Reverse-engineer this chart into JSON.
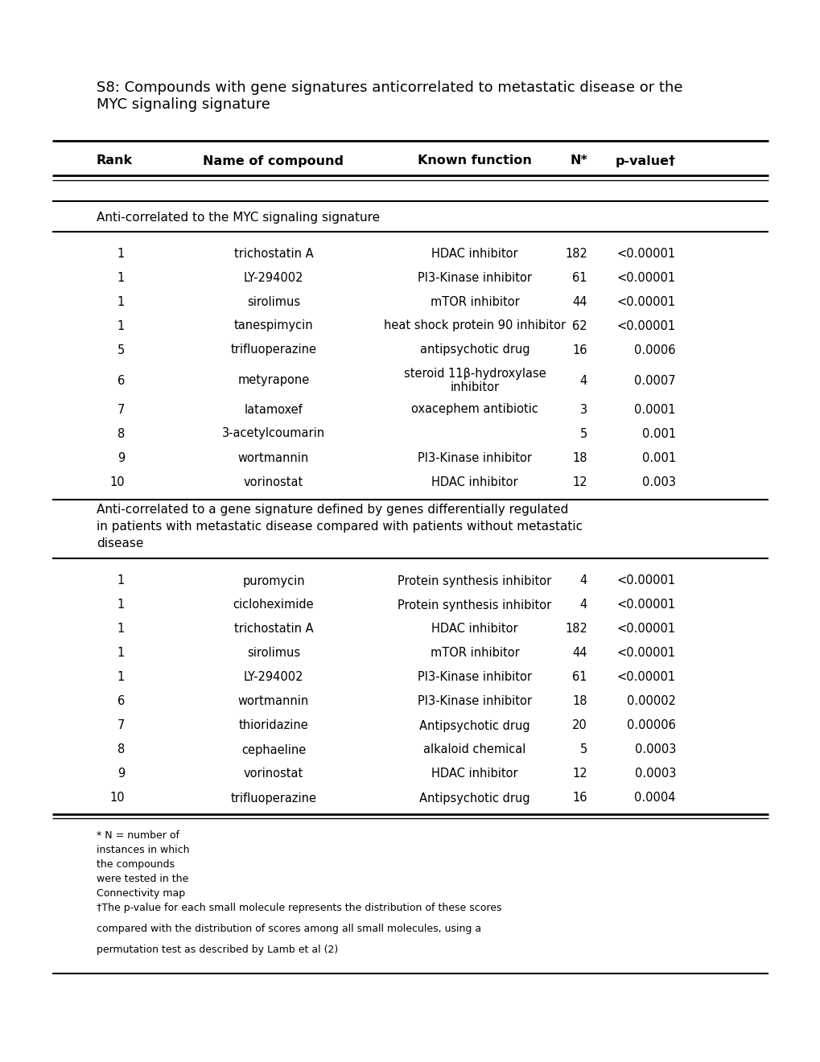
{
  "title": "S8: Compounds with gene signatures anticorrelated to metastatic disease or the\nMYC signaling signature",
  "header": [
    "Rank",
    "Name of compound",
    "Known function",
    "N*",
    "p-value†"
  ],
  "section1_title": "Anti-correlated to the MYC signaling signature",
  "section1_data": [
    [
      "1",
      "trichostatin A",
      "HDAC inhibitor",
      "182",
      "<0.00001"
    ],
    [
      "1",
      "LY-294002",
      "PI3-Kinase inhibitor",
      "61",
      "<0.00001"
    ],
    [
      "1",
      "sirolimus",
      "mTOR inhibitor",
      "44",
      "<0.00001"
    ],
    [
      "1",
      "tanespimycin",
      "heat shock protein 90 inhibitor",
      "62",
      "<0.00001"
    ],
    [
      "5",
      "trifluoperazine",
      "antipsychotic drug",
      "16",
      "0.0006"
    ],
    [
      "6",
      "metyrapone",
      "steroid 11β-hydroxylase\ninhibitor",
      "4",
      "0.0007"
    ],
    [
      "7",
      "latamoxef",
      "oxacephem antibiotic",
      "3",
      "0.0001"
    ],
    [
      "8",
      "3-acetylcoumarin",
      "",
      "5",
      "0.001"
    ],
    [
      "9",
      "wortmannin",
      "PI3-Kinase inhibitor",
      "18",
      "0.001"
    ],
    [
      "10",
      "vorinostat",
      "HDAC inhibitor",
      "12",
      "0.003"
    ]
  ],
  "section2_title": "Anti-correlated to a gene signature defined by genes differentially regulated\nin patients with metastatic disease compared with patients without metastatic\ndisease",
  "section2_data": [
    [
      "1",
      "puromycin",
      "Protein synthesis inhibitor",
      "4",
      "<0.00001"
    ],
    [
      "1",
      "cicloheximide",
      "Protein synthesis inhibitor",
      "4",
      "<0.00001"
    ],
    [
      "1",
      "trichostatin A",
      "HDAC inhibitor",
      "182",
      "<0.00001"
    ],
    [
      "1",
      "sirolimus",
      "mTOR inhibitor",
      "44",
      "<0.00001"
    ],
    [
      "1",
      "LY-294002",
      "PI3-Kinase inhibitor",
      "61",
      "<0.00001"
    ],
    [
      "6",
      "wortmannin",
      "PI3-Kinase inhibitor",
      "18",
      "0.00002"
    ],
    [
      "7",
      "thioridazine",
      "Antipsychotic drug",
      "20",
      "0.00006"
    ],
    [
      "8",
      "cephaeline",
      "alkaloid chemical",
      "5",
      "0.0003"
    ],
    [
      "9",
      "vorinostat",
      "HDAC inhibitor",
      "12",
      "0.0003"
    ],
    [
      "10",
      "trifluoperazine",
      "Antipsychotic drug",
      "16",
      "0.0004"
    ]
  ],
  "footnote1": "* N = number of\ninstances in which\nthe compounds\nwere tested in the\nConnectivity map",
  "footnote2_lines": [
    "†The p-value for each small molecule represents the distribution of these scores",
    "compared with the distribution of scores among all small molecules, using a",
    "permutation test as described by Lamb et al (2)"
  ],
  "background_color": "#ffffff",
  "text_color": "#000000",
  "title_fontsize": 13,
  "header_fontsize": 11.5,
  "data_fontsize": 10.5,
  "section_title_fontsize": 11,
  "footnote_fontsize": 9
}
